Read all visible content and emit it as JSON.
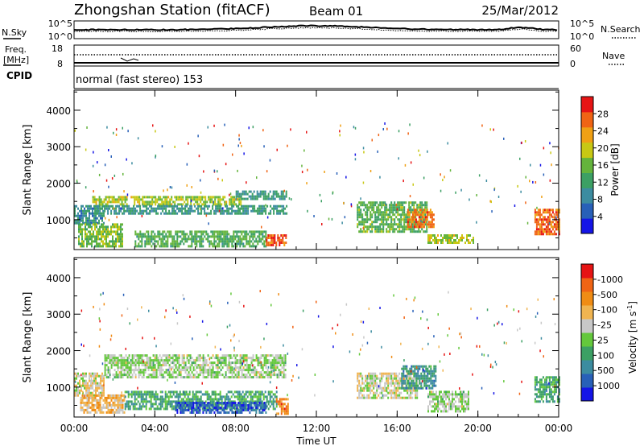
{
  "header": {
    "station": "Zhongshan Station (fitACF)",
    "beam": "Beam 01",
    "date": "25/Mar/2012"
  },
  "top_panels": {
    "nsky_label": "N.Sky",
    "nsearch_label": "N.Search",
    "noise_ticks": [
      "10^5",
      "10^0"
    ],
    "freq_label_1": "Freq.",
    "freq_label_2": "[MHz]",
    "freq_ticks": [
      "18",
      "8"
    ],
    "nave_ticks": [
      "60",
      "0"
    ],
    "nave_label": "Nave",
    "cpid_label": "CPID",
    "cpid_text": "normal (fast stereo) 153"
  },
  "colors": {
    "power": [
      "#1414e6",
      "#2860b8",
      "#3c8ca0",
      "#3ca064",
      "#64b43c",
      "#c8c814",
      "#f0a014",
      "#f06414",
      "#e61414"
    ],
    "velocity": [
      "#e61414",
      "#f06414",
      "#f08c14",
      "#f0b450",
      "#c8c8c8",
      "#64c83c",
      "#3ca064",
      "#3c8ca0",
      "#2860b8",
      "#1414e6"
    ]
  },
  "chart_data": [
    {
      "type": "heatmap",
      "name": "power",
      "ylabel": "Slant Range [km]",
      "xlabel": "Time UT",
      "x_ticks": [
        "00:00",
        "04:00",
        "08:00",
        "12:00",
        "16:00",
        "20:00",
        "00:00"
      ],
      "xlim_hours": [
        0,
        24
      ],
      "y_ticks": [
        1000,
        2000,
        3000,
        4000
      ],
      "ylim": [
        180,
        4550
      ],
      "colorbar": {
        "label": "Power [dB]",
        "ticks": [
          "4",
          "8",
          "12",
          "16",
          "20",
          "24",
          "28"
        ],
        "range": [
          0,
          30
        ]
      },
      "regions": [
        {
          "t": [
            0.0,
            1.5
          ],
          "r": [
            900,
            1400
          ],
          "v": 9
        },
        {
          "t": [
            0.2,
            2.4
          ],
          "r": [
            300,
            900
          ],
          "v": 15
        },
        {
          "t": [
            0.9,
            2.6
          ],
          "r": [
            1450,
            1650
          ],
          "v": 18
        },
        {
          "t": [
            2.8,
            8.3
          ],
          "r": [
            1450,
            1650
          ],
          "v": 17
        },
        {
          "t": [
            1.0,
            10.5
          ],
          "r": [
            1150,
            1400
          ],
          "v": 10
        },
        {
          "t": [
            3.0,
            9.5
          ],
          "r": [
            300,
            700
          ],
          "v": 13
        },
        {
          "t": [
            9.5,
            10.5
          ],
          "r": [
            300,
            600
          ],
          "v": 26
        },
        {
          "t": [
            8.0,
            10.5
          ],
          "r": [
            1600,
            1800
          ],
          "v": 10
        },
        {
          "t": [
            14.0,
            17.5
          ],
          "r": [
            700,
            1500
          ],
          "v": 14
        },
        {
          "t": [
            16.5,
            17.8
          ],
          "r": [
            800,
            1300
          ],
          "v": 24
        },
        {
          "t": [
            17.5,
            19.8
          ],
          "r": [
            350,
            600
          ],
          "v": 17
        },
        {
          "t": [
            22.8,
            24.0
          ],
          "r": [
            600,
            1300
          ],
          "v": 25
        }
      ]
    },
    {
      "type": "heatmap",
      "name": "velocity",
      "ylabel": "Slant Range [km]",
      "xlabel": "Time UT",
      "x_ticks": [
        "00:00",
        "04:00",
        "08:00",
        "12:00",
        "16:00",
        "20:00",
        "00:00"
      ],
      "xlim_hours": [
        0,
        24
      ],
      "y_ticks": [
        1000,
        2000,
        3000,
        4000
      ],
      "ylim": [
        180,
        4550
      ],
      "colorbar": {
        "label": "Velocity [m s-1]",
        "ticks": [
          "1000",
          "500",
          "100",
          "25",
          "-25",
          "-100",
          "-500",
          "-1000"
        ],
        "range": [
          -1000,
          1000
        ]
      },
      "regions": [
        {
          "t": [
            0.0,
            1.5
          ],
          "r": [
            800,
            1400
          ],
          "v": 150
        },
        {
          "t": [
            0.3,
            2.5
          ],
          "r": [
            300,
            800
          ],
          "v": 300
        },
        {
          "t": [
            1.5,
            10.5
          ],
          "r": [
            1300,
            1900
          ],
          "v": 0
        },
        {
          "t": [
            2.5,
            10.0
          ],
          "r": [
            400,
            900
          ],
          "v": -300
        },
        {
          "t": [
            5.0,
            9.5
          ],
          "r": [
            300,
            600
          ],
          "v": -700
        },
        {
          "t": [
            10.0,
            10.6
          ],
          "r": [
            300,
            700
          ],
          "v": 600
        },
        {
          "t": [
            14.0,
            17.0
          ],
          "r": [
            700,
            1400
          ],
          "v": 100
        },
        {
          "t": [
            16.2,
            17.9
          ],
          "r": [
            1000,
            1600
          ],
          "v": -400
        },
        {
          "t": [
            17.5,
            19.5
          ],
          "r": [
            350,
            900
          ],
          "v": 0
        },
        {
          "t": [
            22.8,
            24.0
          ],
          "r": [
            600,
            1300
          ],
          "v": -300
        }
      ]
    }
  ]
}
